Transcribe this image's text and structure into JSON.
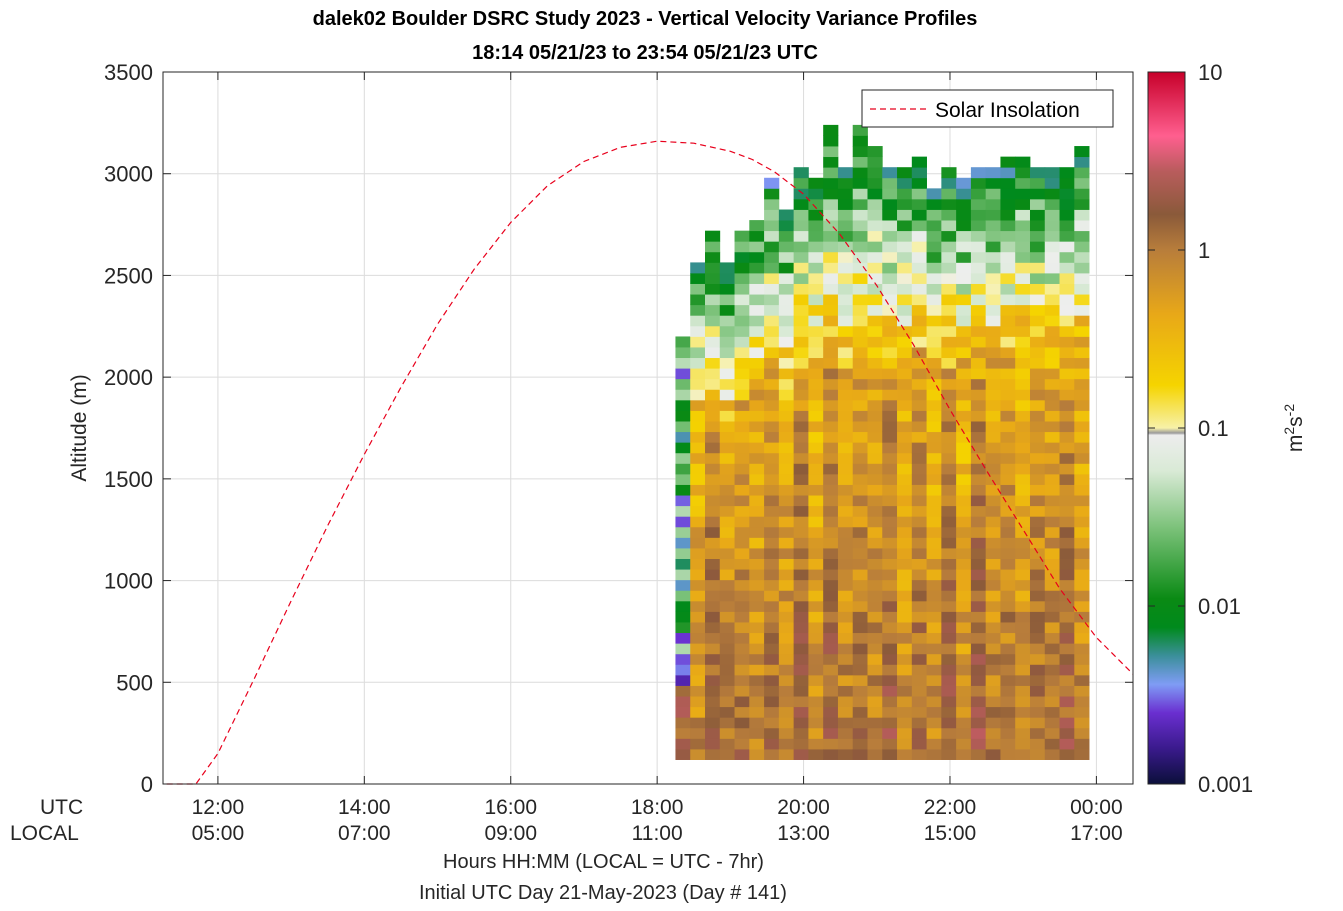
{
  "chart_data": {
    "type": "heatmap",
    "title": "dalek02 Boulder DSRC Study 2023 - Vertical Velocity Variance Profiles",
    "subtitle": "18:14 05/21/23 to 23:54 05/21/23  UTC",
    "ylabel": "Altitude (m)",
    "xlabel": "Hours HH:MM  (LOCAL = UTC - 7hr)",
    "xlabel2": "Initial UTC Day 21-May-2023 (Day # 141)",
    "ylim": [
      0,
      3500
    ],
    "xlim_hours_utc": [
      11.25,
      24.5
    ],
    "yticks": [
      0,
      500,
      1000,
      1500,
      2000,
      2500,
      3000,
      3500
    ],
    "ytick_labels": [
      "0",
      "500",
      "1000",
      "1500",
      "2000",
      "2500",
      "3000",
      "3500"
    ],
    "xticks_hours_utc": [
      12,
      14,
      16,
      18,
      20,
      22,
      24
    ],
    "utc_row_label": "UTC",
    "local_row_label": "LOCAL",
    "utc_tick_labels": [
      "12:00",
      "14:00",
      "16:00",
      "18:00",
      "20:00",
      "22:00",
      "00:00"
    ],
    "local_tick_labels": [
      "05:00",
      "07:00",
      "09:00",
      "11:00",
      "13:00",
      "15:00",
      "17:00"
    ],
    "grid": true,
    "legend": {
      "entries": [
        "Solar Insolation"
      ],
      "placement": "top-right"
    },
    "colorbar": {
      "label_base": "m",
      "label_sup1": "2",
      "label_mid": "s",
      "label_sup2": "-2",
      "scale": "log",
      "range": [
        0.001,
        10
      ],
      "ticks": [
        "0.001",
        "0.01",
        "0.1",
        "1",
        "10"
      ]
    },
    "series": [
      {
        "name": "Solar Insolation",
        "style": "dashed",
        "color": "#e8001c",
        "note": "relative solar elevation curve plotted in altitude units",
        "x_hours_utc": [
          11.3,
          11.7,
          12.0,
          12.5,
          13.0,
          13.5,
          14.0,
          14.5,
          15.0,
          15.5,
          16.0,
          16.5,
          17.0,
          17.5,
          18.0,
          18.5,
          19.0,
          19.3,
          19.6,
          20.0,
          20.5,
          21.0,
          21.5,
          22.0,
          22.5,
          23.0,
          23.5,
          24.0,
          24.5
        ],
        "y": [
          0,
          0,
          150,
          520,
          900,
          1270,
          1620,
          1950,
          2260,
          2530,
          2760,
          2940,
          3060,
          3130,
          3160,
          3150,
          3110,
          3070,
          3010,
          2900,
          2700,
          2450,
          2160,
          1840,
          1540,
          1250,
          960,
          720,
          540
        ]
      }
    ],
    "heatmap": {
      "x_start_hours_utc": 18.25,
      "x_end_hours_utc": 23.9,
      "column_count": 28,
      "y_start_m": 120,
      "gate_m": 52,
      "top_altitudes_m": [
        2200,
        2560,
        2700,
        2560,
        2700,
        2750,
        2950,
        2800,
        3000,
        2950,
        3200,
        3000,
        3200,
        3100,
        3000,
        3000,
        3050,
        2900,
        3000,
        2950,
        3000,
        3000,
        3050,
        3050,
        3000,
        3000,
        3000,
        3100
      ],
      "value_scale": "log10(m2 s-2)",
      "typical_low_level_range": [
        0.3,
        1.5
      ],
      "typical_top_range": [
        0.005,
        0.1
      ]
    }
  }
}
